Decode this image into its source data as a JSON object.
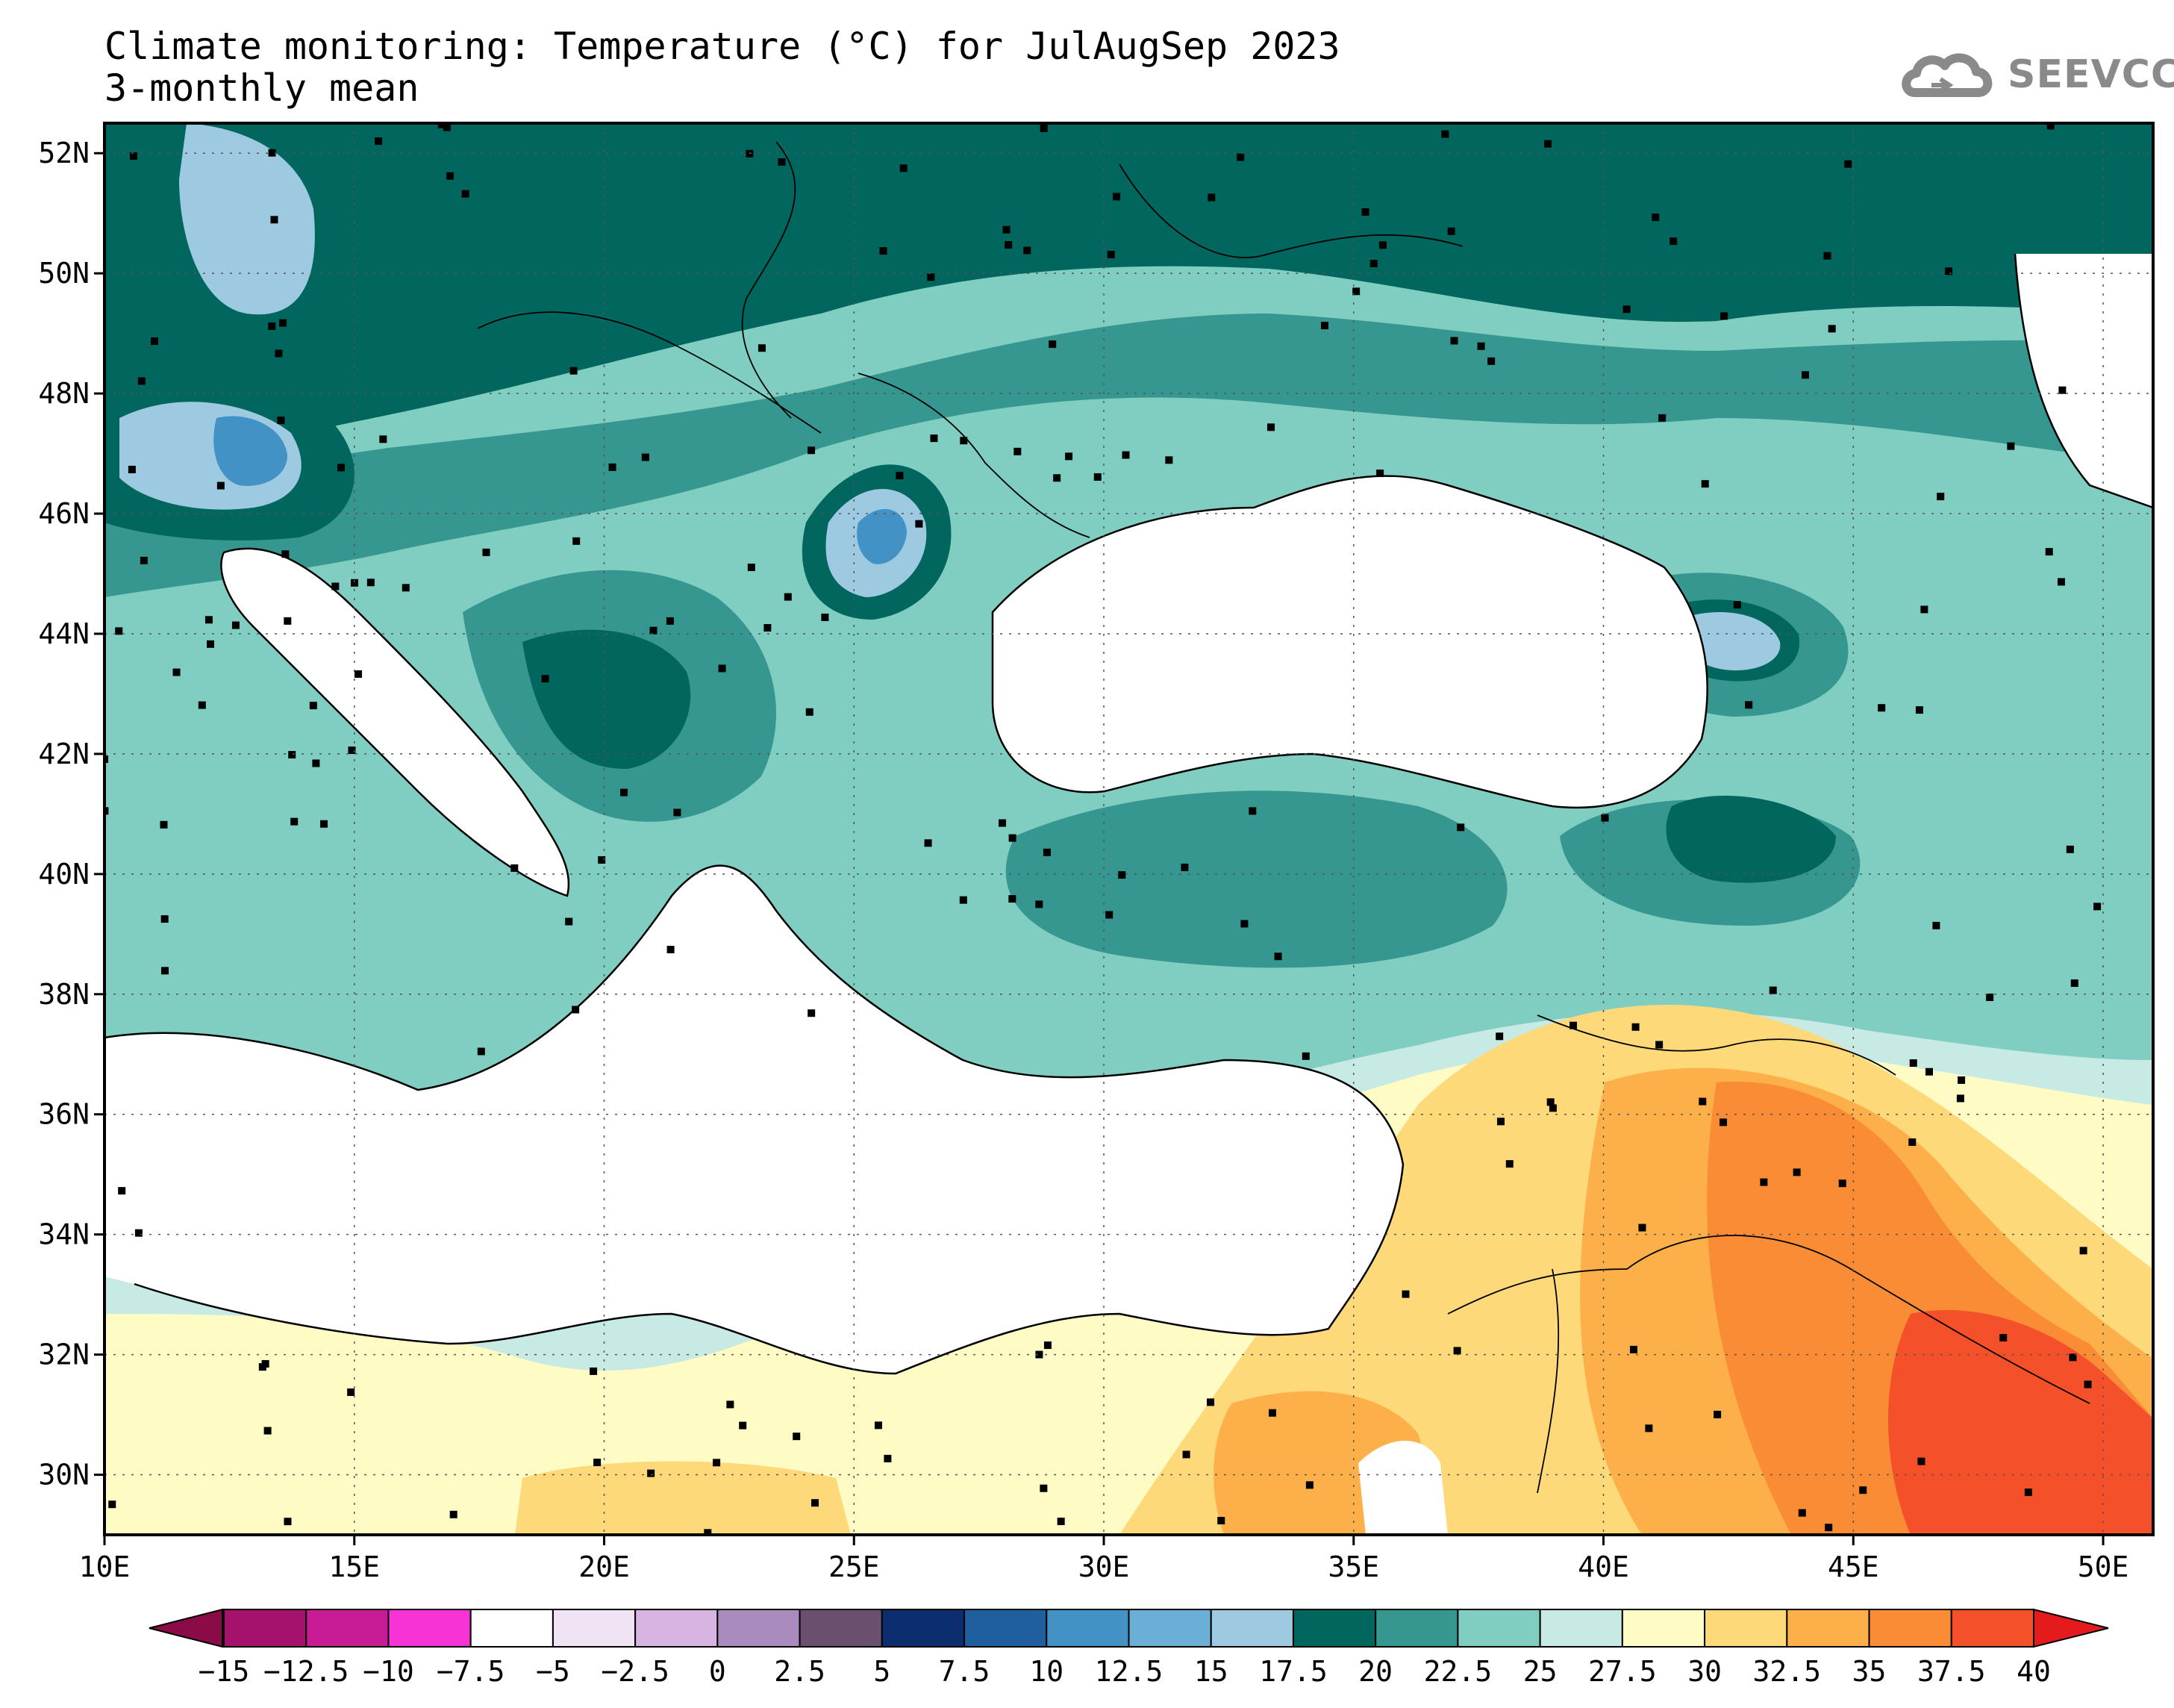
{
  "title": {
    "line1": "Climate monitoring: Temperature (°C) for JulAugSep 2023",
    "line2": "3-monthly mean"
  },
  "logo": {
    "text": "SEEVCCC",
    "icon": "cloud-icon"
  },
  "map": {
    "lon_range": [
      10,
      51
    ],
    "lat_range": [
      29,
      52.5
    ],
    "lat_ticks": [
      "52N",
      "50N",
      "48N",
      "46N",
      "44N",
      "42N",
      "40N",
      "38N",
      "36N",
      "34N",
      "32N",
      "30N"
    ],
    "lat_values": [
      52,
      50,
      48,
      46,
      44,
      42,
      40,
      38,
      36,
      34,
      32,
      30
    ],
    "lon_ticks": [
      "10E",
      "15E",
      "20E",
      "25E",
      "30E",
      "35E",
      "40E",
      "45E",
      "50E"
    ],
    "lon_values": [
      10,
      15,
      20,
      25,
      30,
      35,
      40,
      45,
      50
    ],
    "grid": true
  },
  "colorbar": {
    "labels": [
      "−15",
      "−12.5",
      "−10",
      "−7.5",
      "−5",
      "−2.5",
      "0",
      "2.5",
      "5",
      "7.5",
      "10",
      "12.5",
      "15",
      "17.5",
      "20",
      "22.5",
      "25",
      "27.5",
      "30",
      "32.5",
      "35",
      "37.5",
      "40"
    ],
    "colors": [
      "#8b0a48",
      "#a5126e",
      "#c81c96",
      "#f733d6",
      "#ffffff",
      "#efe3f4",
      "#d8b4e2",
      "#a98cbd",
      "#6b4f6e",
      "#0d2e6e",
      "#1f5f9e",
      "#4292c6",
      "#6baed6",
      "#9ecae1",
      "#01665e",
      "#35978f",
      "#80cdc1",
      "#c7eae5",
      "#fefbc4",
      "#fed97a",
      "#fdb04a",
      "#f98c34",
      "#f4502a",
      "#e41a1c"
    ]
  }
}
